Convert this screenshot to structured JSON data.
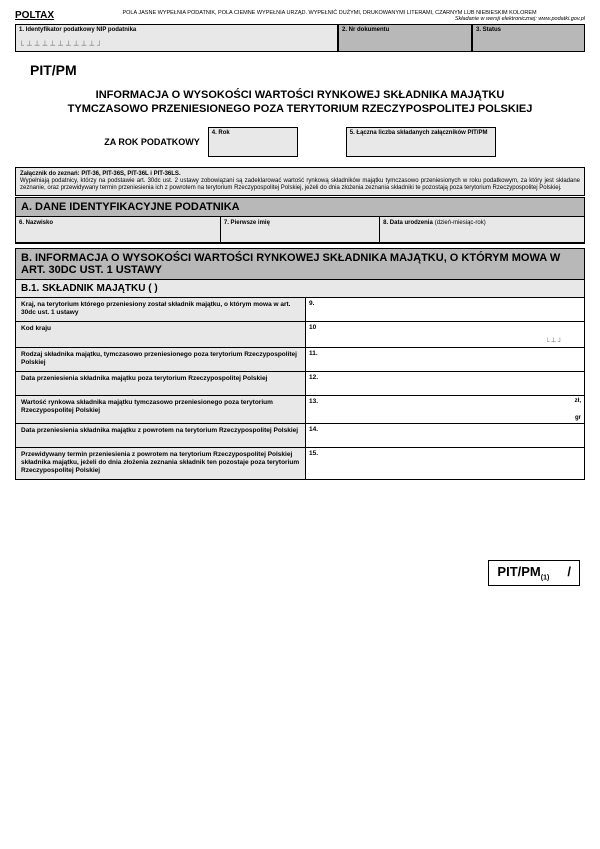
{
  "top": {
    "poltax": "POLTAX",
    "instr1": "POLA JASNE WYPEŁNIA PODATNIK, POLA CIEMNE WYPEŁNIA URZĄD. WYPEŁNIĆ DUŻYMI, DRUKOWANYMI LITERAMI, CZARNYM LUB NIEBIESKIM KOLOREM",
    "instr2": "Składanie w wersji elektronicznej: www.podatki.gov.pl"
  },
  "hdr": {
    "f1": "1. Identyfikator podatkowy NIP podatnika",
    "f2": "2. Nr dokumentu",
    "f3": "3. Status"
  },
  "form": {
    "code": "PIT/PM",
    "title": "INFORMACJA O WYSOKOŚCI WARTOŚCI RYNKOWEJ SKŁADNIKA MAJĄTKU TYMCZASOWO PRZENIESIONEGO POZA TERYTORIUM RZECZYPOSPOLITEJ POLSKIEJ",
    "yearlabel": "ZA ROK PODATKOWY",
    "f4": "4. Rok",
    "f5": "5. Łączna liczba składanych załączników PIT/PM"
  },
  "note": {
    "l1": "Załącznik do zeznań: PIT-36, PIT-36S, PIT-36L i PIT-36LS.",
    "l2": "Wypełniają podatnicy, którzy na podstawie art. 30dc ust. 2 ustawy zobowiązani są zadeklarować wartość rynkową składników majątku tymczasowo przeniesionych w roku podatkowym, za który jest składane zeznanie, oraz przewidywany termin przeniesienia ich z powrotem na terytorium Rzeczypospolitej Polskiej, jeżeli do dnia złożenia zeznania składniki te pozostają poza terytorium Rzeczypospolitej Polskiej."
  },
  "secA": {
    "hdr": "A. DANE IDENTYFIKACYJNE PODATNIKA",
    "f6": "6. Nazwisko",
    "f7": "7. Pierwsze imię",
    "f8": "8. Data urodzenia",
    "f8b": "(dzień-miesiąc-rok)"
  },
  "secB": {
    "hdr": "B. INFORMACJA O WYSOKOŚCI WARTOŚCI RYNKOWEJ SKŁADNIKA MAJĄTKU, O KTÓRYM MOWA W ART. 30DC UST. 1 USTAWY",
    "sub": "B.1. SKŁADNIK MAJĄTKU (    )",
    "rows": [
      {
        "label": "Kraj, na terytorium którego przeniesiony został składnik majątku, o którym mowa w art. 30dc ust. 1 ustawy",
        "num": "9."
      },
      {
        "label": "Kod kraju",
        "num": "10"
      },
      {
        "label": "Rodzaj składnika majątku, tymczasowo przeniesionego poza terytorium Rzeczypospolitej Polskiej",
        "num": "11."
      },
      {
        "label": "Data przeniesienia składnika majątku poza terytorium Rzeczypospolitej Polskiej",
        "num": "12."
      },
      {
        "label": "Wartość rynkowa składnika majątku tymczasowo przeniesionego poza terytorium Rzeczypospolitej Polskiej",
        "num": "13.",
        "unit1": "zł,",
        "unit2": "gr"
      },
      {
        "label": "Data przeniesienia składnika majątku z powrotem na terytorium Rzeczypospolitej Polskiej",
        "num": "14."
      },
      {
        "label": "Przewidywany termin przeniesienia z powrotem na terytorium Rzeczypospolitej Polskiej składnika majątku, jeżeli do dnia złożenia zeznania składnik ten pozostaje poza terytorium Rzeczypospolitej Polskiej",
        "num": "15."
      }
    ]
  },
  "footer": {
    "code": "PIT/PM",
    "sub": "(1)",
    "slash": "/"
  }
}
